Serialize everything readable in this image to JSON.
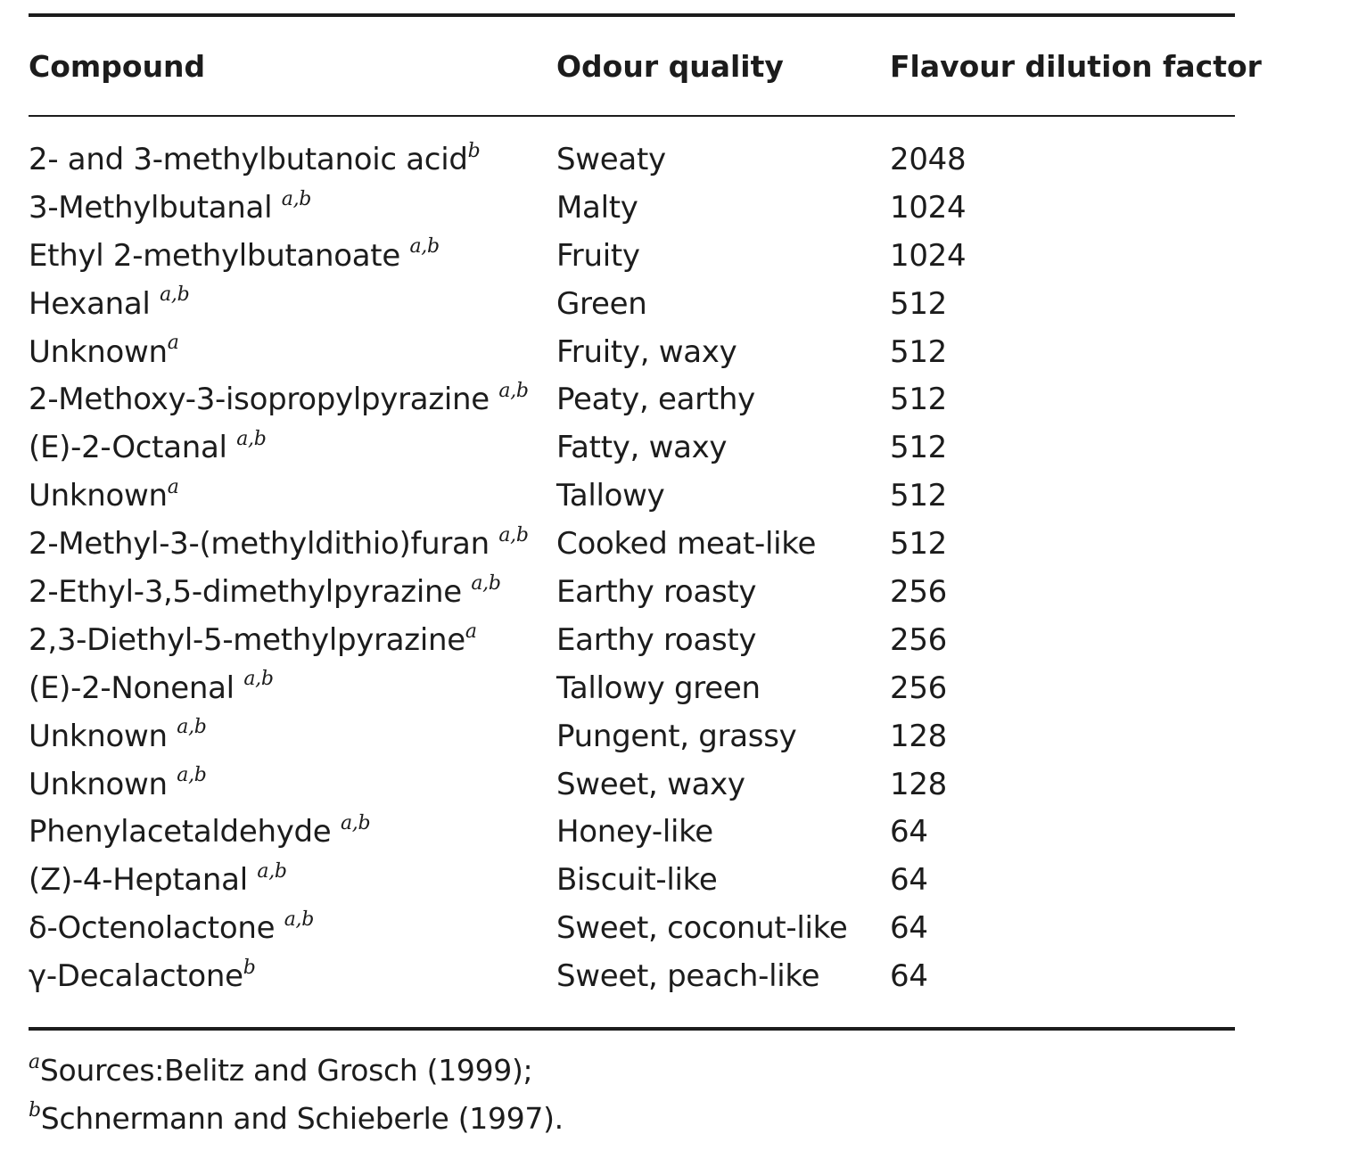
{
  "header": {
    "compound": "Compound",
    "odour_quality": "Odour quality",
    "flavour_dilution_factor": "Flavour dilution factor"
  },
  "rows": [
    {
      "compound": "2- and 3-methylbutanoic acid",
      "sup": "b",
      "odour": "Sweaty",
      "fd": "2048"
    },
    {
      "compound": "3-Methylbutanal ",
      "sup": "a,b",
      "odour": "Malty",
      "fd": "1024"
    },
    {
      "compound": "Ethyl 2-methylbutanoate ",
      "sup": "a,b",
      "odour": "Fruity",
      "fd": "1024"
    },
    {
      "compound": "Hexanal ",
      "sup": "a,b",
      "odour": "Green",
      "fd": "512"
    },
    {
      "compound": "Unknown",
      "sup": "a",
      "odour": "Fruity, waxy",
      "fd": "512"
    },
    {
      "compound": "2-Methoxy-3-isopropylpyrazine ",
      "sup": "a,b",
      "odour": "Peaty, earthy",
      "fd": "512"
    },
    {
      "compound": "(E)-2-Octanal ",
      "sup": "a,b",
      "odour": "Fatty, waxy",
      "fd": "512"
    },
    {
      "compound": "Unknown",
      "sup": "a",
      "odour": "Tallowy",
      "fd": "512"
    },
    {
      "compound": "2-Methyl-3-(methyldithio)furan ",
      "sup": "a,b",
      "odour": "Cooked meat-like",
      "fd": "512"
    },
    {
      "compound": "2-Ethyl-3,5-dimethylpyrazine ",
      "sup": "a,b",
      "odour": "Earthy roasty",
      "fd": "256"
    },
    {
      "compound": "2,3-Diethyl-5-methylpyrazine",
      "sup": "a",
      "odour": "Earthy roasty",
      "fd": "256"
    },
    {
      "compound": "(E)-2-Nonenal ",
      "sup": "a,b",
      "odour": "Tallowy green",
      "fd": "256"
    },
    {
      "compound": "Unknown ",
      "sup": "a,b",
      "odour": "Pungent, grassy",
      "fd": "128"
    },
    {
      "compound": "Unknown ",
      "sup": "a,b",
      "odour": "Sweet, waxy",
      "fd": "128"
    },
    {
      "compound": "Phenylacetaldehyde ",
      "sup": "a,b",
      "odour": "Honey-like",
      "fd": "64"
    },
    {
      "compound": "(Z)-4-Heptanal ",
      "sup": "a,b",
      "odour": "Biscuit-like",
      "fd": "64"
    },
    {
      "compound": "δ-Octenolactone ",
      "sup": "a,b",
      "odour": "Sweet, coconut-like",
      "fd": "64"
    },
    {
      "compound": "γ-Decalactone",
      "sup": "b",
      "odour": "Sweet, peach-like",
      "fd": "64"
    }
  ],
  "footnotes": [
    {
      "mark": "a",
      "text": "Sources:Belitz and Grosch (1999);"
    },
    {
      "mark": "b",
      "text": "Schnermann and Schieberle (1997)."
    }
  ]
}
